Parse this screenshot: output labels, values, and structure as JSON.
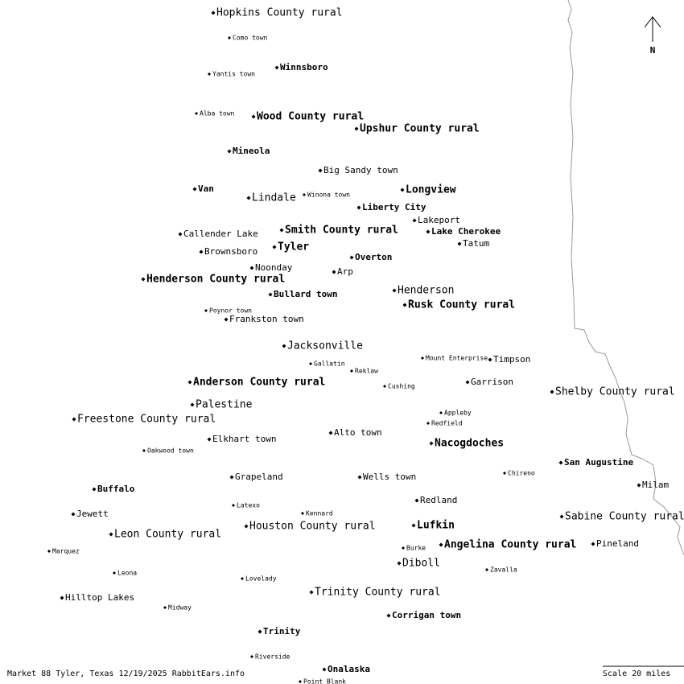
{
  "north": "N",
  "footer": "Market 88 Tyler, Texas 12/19/2025 RabbitEars.info",
  "scale": "Scale 20 miles",
  "places": [
    {
      "label": "Hopkins County rural"
    },
    {
      "label": "Como town"
    },
    {
      "label": "Winnsboro"
    },
    {
      "label": "Yantis town"
    },
    {
      "label": "Alba town"
    },
    {
      "label": "Wood County rural"
    },
    {
      "label": "Upshur County rural"
    },
    {
      "label": "Mineola"
    },
    {
      "label": "Big Sandy town"
    },
    {
      "label": "Van"
    },
    {
      "label": "Lindale"
    },
    {
      "label": "Winona town"
    },
    {
      "label": "Longview"
    },
    {
      "label": "Liberty City"
    },
    {
      "label": "Lakeport"
    },
    {
      "label": "Callender Lake"
    },
    {
      "label": "Smith County rural"
    },
    {
      "label": "Lake Cherokee"
    },
    {
      "label": "Tatum"
    },
    {
      "label": "Brownsboro"
    },
    {
      "label": "Tyler"
    },
    {
      "label": "Overton"
    },
    {
      "label": "Noonday"
    },
    {
      "label": "Arp"
    },
    {
      "label": "Henderson County rural"
    },
    {
      "label": "Henderson"
    },
    {
      "label": "Bullard town"
    },
    {
      "label": "Rusk County rural"
    },
    {
      "label": "Poynor town"
    },
    {
      "label": "Frankston town"
    },
    {
      "label": "Jacksonville"
    },
    {
      "label": "Mount Enterprise"
    },
    {
      "label": "Timpson"
    },
    {
      "label": "Gallatin"
    },
    {
      "label": "Reklaw"
    },
    {
      "label": "Anderson County rural"
    },
    {
      "label": "Garrison"
    },
    {
      "label": "Cushing"
    },
    {
      "label": "Shelby County rural"
    },
    {
      "label": "Palestine"
    },
    {
      "label": "Appleby"
    },
    {
      "label": "Freestone County rural"
    },
    {
      "label": "Redfield"
    },
    {
      "label": "Alto town"
    },
    {
      "label": "Elkhart town"
    },
    {
      "label": "Nacogdoches"
    },
    {
      "label": "Oakwood town"
    },
    {
      "label": "San Augustine"
    },
    {
      "label": "Chireno"
    },
    {
      "label": "Grapeland"
    },
    {
      "label": "Wells town"
    },
    {
      "label": "Buffalo"
    },
    {
      "label": "Milam"
    },
    {
      "label": "Redland"
    },
    {
      "label": "Latexo"
    },
    {
      "label": "Jewett"
    },
    {
      "label": "Kennard"
    },
    {
      "label": "Sabine County rural"
    },
    {
      "label": "Houston County rural"
    },
    {
      "label": "Lufkin"
    },
    {
      "label": "Leon County rural"
    },
    {
      "label": "Angelina County rural"
    },
    {
      "label": "Pineland"
    },
    {
      "label": "Burke"
    },
    {
      "label": "Marquez"
    },
    {
      "label": "Diboll"
    },
    {
      "label": "Zavalla"
    },
    {
      "label": "Leona"
    },
    {
      "label": "Lovelady"
    },
    {
      "label": "Hilltop Lakes"
    },
    {
      "label": "Trinity County rural"
    },
    {
      "label": "Midway"
    },
    {
      "label": "Corrigan town"
    },
    {
      "label": "Trinity"
    },
    {
      "label": "Riverside"
    },
    {
      "label": "Onalaska"
    },
    {
      "label": "Point Blank"
    }
  ]
}
